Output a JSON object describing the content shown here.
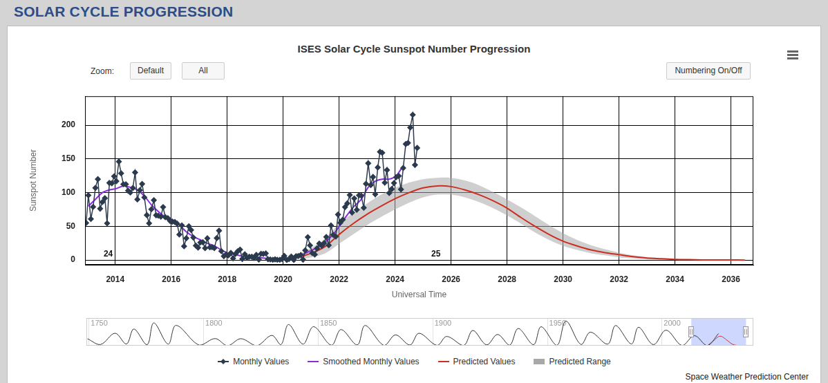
{
  "page": {
    "heading": "SOLAR CYCLE PROGRESSION",
    "zoom_label": "Zoom:",
    "zoom_buttons": [
      "Default",
      "All"
    ],
    "toggle_button": "Numbering On/Off",
    "credit": "Space Weather Prediction Center"
  },
  "chart_data": [
    {
      "type": "line",
      "title": "ISES Solar Cycle Sunspot Number Progression",
      "xlabel": "Universal Time",
      "ylabel": "Sunspot Number",
      "xlim": [
        2012.92,
        2036.8
      ],
      "xticks": [
        2014,
        2016,
        2018,
        2020,
        2022,
        2024,
        2026,
        2028,
        2030,
        2032,
        2034,
        2036
      ],
      "ylim": [
        -7,
        243
      ],
      "yticks": [
        0,
        50,
        100,
        150,
        200
      ],
      "grid": true,
      "legend": "bottom",
      "annotations": [
        {
          "text": "24",
          "x": 2013.75,
          "y": 9
        },
        {
          "text": "25",
          "x": 2025.46,
          "y": 9
        }
      ],
      "series": [
        {
          "name": "Monthly Values",
          "type": "line",
          "color": "#2b3a4d",
          "marker": "diamond",
          "x": [
            2012.96,
            2013.04,
            2013.13,
            2013.21,
            2013.29,
            2013.38,
            2013.46,
            2013.54,
            2013.63,
            2013.71,
            2013.79,
            2013.88,
            2013.96,
            2014.04,
            2014.13,
            2014.21,
            2014.29,
            2014.38,
            2014.46,
            2014.54,
            2014.63,
            2014.71,
            2014.79,
            2014.88,
            2014.96,
            2015.04,
            2015.13,
            2015.21,
            2015.29,
            2015.38,
            2015.46,
            2015.54,
            2015.63,
            2015.71,
            2015.79,
            2015.88,
            2015.96,
            2016.04,
            2016.13,
            2016.21,
            2016.29,
            2016.38,
            2016.46,
            2016.54,
            2016.63,
            2016.71,
            2016.79,
            2016.88,
            2016.96,
            2017.04,
            2017.13,
            2017.21,
            2017.29,
            2017.38,
            2017.46,
            2017.54,
            2017.63,
            2017.71,
            2017.79,
            2017.88,
            2017.96,
            2018.04,
            2018.13,
            2018.21,
            2018.29,
            2018.38,
            2018.46,
            2018.54,
            2018.63,
            2018.71,
            2018.79,
            2018.88,
            2018.96,
            2019.04,
            2019.13,
            2019.21,
            2019.29,
            2019.38,
            2019.46,
            2019.54,
            2019.63,
            2019.71,
            2019.79,
            2019.88,
            2019.96,
            2020.04,
            2020.13,
            2020.21,
            2020.29,
            2020.38,
            2020.46,
            2020.54,
            2020.63,
            2020.71,
            2020.79,
            2020.88,
            2020.96,
            2021.04,
            2021.13,
            2021.21,
            2021.29,
            2021.38,
            2021.46,
            2021.54,
            2021.63,
            2021.71,
            2021.79,
            2021.88,
            2021.96,
            2022.04,
            2022.13,
            2022.21,
            2022.29,
            2022.38,
            2022.46,
            2022.54,
            2022.63,
            2022.71,
            2022.79,
            2022.88,
            2022.96,
            2023.04,
            2023.13,
            2023.21,
            2023.29,
            2023.38,
            2023.46,
            2023.54,
            2023.63,
            2023.71,
            2023.79,
            2023.88,
            2023.96,
            2024.04,
            2024.13,
            2024.21,
            2024.29,
            2024.38,
            2024.46,
            2024.54,
            2024.63,
            2024.71,
            2024.79
          ],
          "values": [
            55,
            96.1,
            60.9,
            78.9,
            107.0,
            120.0,
            76.2,
            86.1,
            91.8,
            54.5,
            114.4,
            113.9,
            124.2,
            117.0,
            146.1,
            128.7,
            112.5,
            112.5,
            102.9,
            100.2,
            106.9,
            130.0,
            90.0,
            103.6,
            112.9,
            93.0,
            66.7,
            54.5,
            75.3,
            88.8,
            66.5,
            65.8,
            64.4,
            78.6,
            63.6,
            62.2,
            58.0,
            57.0,
            56.4,
            54.1,
            37.9,
            51.5,
            20.5,
            32.4,
            50.2,
            44.6,
            33.4,
            21.4,
            18.5,
            26.1,
            26.4,
            17.7,
            32.3,
            18.9,
            19.2,
            17.8,
            32.6,
            43.6,
            13.2,
            5.7,
            8.2,
            6.8,
            10.7,
            2.5,
            8.9,
            13.1,
            15.6,
            1.6,
            8.7,
            3.3,
            4.9,
            4.9,
            3.1,
            7.7,
            0.8,
            9.4,
            9.1,
            9.9,
            1.2,
            0.9,
            0.5,
            1.1,
            0.4,
            0.5,
            1.5,
            6.2,
            0.2,
            1.5,
            5.2,
            0.2,
            5.8,
            6.1,
            7.5,
            0.6,
            14.4,
            34.0,
            21.8,
            10.4,
            8.2,
            17.2,
            24.5,
            21.2,
            25.0,
            34.3,
            22.0,
            51.3,
            37.4,
            34.8,
            67.5,
            55.3,
            59.9,
            78.5,
            84.1,
            96.5,
            70.5,
            91.4,
            74.6,
            96.0,
            95.5,
            77.6,
            113.1,
            143.6,
            111.3,
            123.3,
            97.6,
            137.4,
            160.5,
            159.1,
            114.8,
            133.6,
            99.4,
            105.4,
            114.2,
            123.0,
            124.7,
            104.9,
            136.5,
            172.1,
            173.7,
            196.6,
            215.5,
            141.1,
            166.4
          ]
        },
        {
          "name": "Smoothed Monthly Values",
          "type": "line",
          "color": "#8a2be2",
          "x": [
            2013.04,
            2013.29,
            2013.54,
            2013.79,
            2014.04,
            2014.29,
            2014.54,
            2014.79,
            2015.04,
            2015.29,
            2015.54,
            2015.79,
            2016.04,
            2016.29,
            2016.54,
            2016.79,
            2017.04,
            2017.29,
            2017.54,
            2017.79,
            2018.04,
            2018.29,
            2018.54,
            2018.79,
            2019.04,
            2019.29,
            2019.54,
            2019.79,
            2020.04,
            2020.29,
            2020.54,
            2020.79,
            2021.04,
            2021.29,
            2021.54,
            2021.79,
            2022.04,
            2022.29,
            2022.54,
            2022.79,
            2023.04,
            2023.29,
            2023.54,
            2023.79,
            2024.04,
            2024.29
          ],
          "values": [
            80,
            90,
            100,
            104,
            106,
            110,
            108,
            104,
            95,
            82,
            72,
            64,
            60,
            52,
            42,
            35,
            30,
            25,
            21,
            15,
            10,
            8,
            6,
            5,
            4,
            3,
            2,
            1.8,
            2,
            3,
            6,
            10,
            15,
            20,
            28,
            38,
            52,
            67,
            80,
            90,
            108,
            117,
            120,
            120,
            125,
            140
          ]
        },
        {
          "name": "Predicted Values",
          "type": "line",
          "color": "#cc2e1f",
          "x": [
            2020.0,
            2020.5,
            2021.0,
            2021.5,
            2022.0,
            2022.5,
            2023.0,
            2023.5,
            2024.0,
            2024.5,
            2025.0,
            2025.5,
            2026.0,
            2026.5,
            2027.0,
            2027.5,
            2028.0,
            2028.5,
            2029.0,
            2029.5,
            2030.0,
            2030.5,
            2031.0,
            2031.5,
            2032.0,
            2032.5,
            2033.0,
            2033.5,
            2034.0,
            2034.5,
            2035.0,
            2035.5,
            2036.0,
            2036.5
          ],
          "values": [
            1,
            4,
            10,
            20,
            38,
            54,
            68,
            80,
            91,
            100,
            107,
            110,
            109,
            104,
            97,
            88,
            77,
            63,
            50,
            38,
            28,
            21,
            15,
            11,
            8,
            5,
            3,
            2,
            1,
            0.6,
            0.3,
            0.2,
            0.1,
            0
          ]
        },
        {
          "name": "Predicted Range",
          "type": "range",
          "color": "#a8a8a8",
          "x": [
            2020.0,
            2020.5,
            2021.0,
            2021.5,
            2022.0,
            2022.5,
            2023.0,
            2023.5,
            2024.0,
            2024.5,
            2025.0,
            2025.5,
            2026.0,
            2026.5,
            2027.0,
            2027.5,
            2028.0,
            2028.5,
            2029.0,
            2029.5,
            2030.0,
            2030.5,
            2031.0,
            2031.5,
            2032.0,
            2032.5,
            2033.0,
            2033.5,
            2034.0,
            2034.5,
            2035.0,
            2035.5,
            2036.0,
            2036.5
          ],
          "low": [
            0,
            1,
            4,
            10,
            24,
            38,
            52,
            64,
            75,
            85,
            93,
            97,
            97,
            93,
            86,
            77,
            66,
            54,
            41,
            30,
            21,
            15,
            10,
            7,
            4,
            2.5,
            1.5,
            1,
            0.5,
            0.3,
            0.1,
            0,
            0,
            0
          ],
          "high": [
            2,
            8,
            18,
            32,
            54,
            70,
            84,
            97,
            107,
            115,
            120,
            122,
            122,
            118,
            111,
            101,
            90,
            78,
            65,
            52,
            40,
            30,
            22,
            16,
            11,
            7,
            4.5,
            3,
            2,
            1,
            0.6,
            0.4,
            0.2,
            0.1
          ]
        }
      ]
    },
    {
      "type": "line",
      "xlim": [
        1749,
        2040
      ],
      "xticks": [
        1750,
        1800,
        1850,
        1900,
        1950,
        2000
      ],
      "ylim": [
        0,
        320
      ],
      "tick_labels": "x",
      "grid": true,
      "series": [
        {
          "color": "#333333",
          "x": [
            1749.5,
            1755.2,
            1761.5,
            1766.5,
            1769.7,
            1775.5,
            1778.4,
            1784.7,
            1788.1,
            1798.3,
            1805.2,
            1810.6,
            1816.4,
            1823.3,
            1829.9,
            1833.9,
            1837.2,
            1843.5,
            1848.1,
            1855.9,
            1860.1,
            1867.2,
            1870.6,
            1878.9,
            1883.9,
            1890.2,
            1894.1,
            1902.0,
            1906.2,
            1913.6,
            1917.6,
            1923.6,
            1928.4,
            1933.7,
            1937.4,
            1944.1,
            1947.4,
            1954.3,
            1958.2,
            1964.8,
            1968.9,
            1976.5,
            1979.9,
            1986.8,
            1989.9,
            1996.4,
            2001.9,
            2008.9,
            2014.3,
            2019.9,
            2024.8
          ],
          "values": [
            80,
            14,
            144,
            19,
            193,
            12,
            264,
            18,
            235,
            6,
            82,
            0,
            81,
            0,
            119,
            12,
            245,
            18,
            220,
            6,
            186,
            9,
            234,
            3,
            125,
            8,
            144,
            4,
            107,
            2,
            176,
            9,
            130,
            6,
            199,
            12,
            219,
            5,
            285,
            14,
            157,
            18,
            233,
            20,
            213,
            12,
            180,
            2,
            116,
            2,
            140
          ]
        },
        {
          "color": "#cc2e1f",
          "x": [
            2020.0,
            2022.5,
            2025.5,
            2028.5,
            2031.0,
            2034.0,
            2036.5
          ],
          "values": [
            1,
            54,
            110,
            63,
            15,
            1,
            0
          ]
        }
      ]
    }
  ]
}
